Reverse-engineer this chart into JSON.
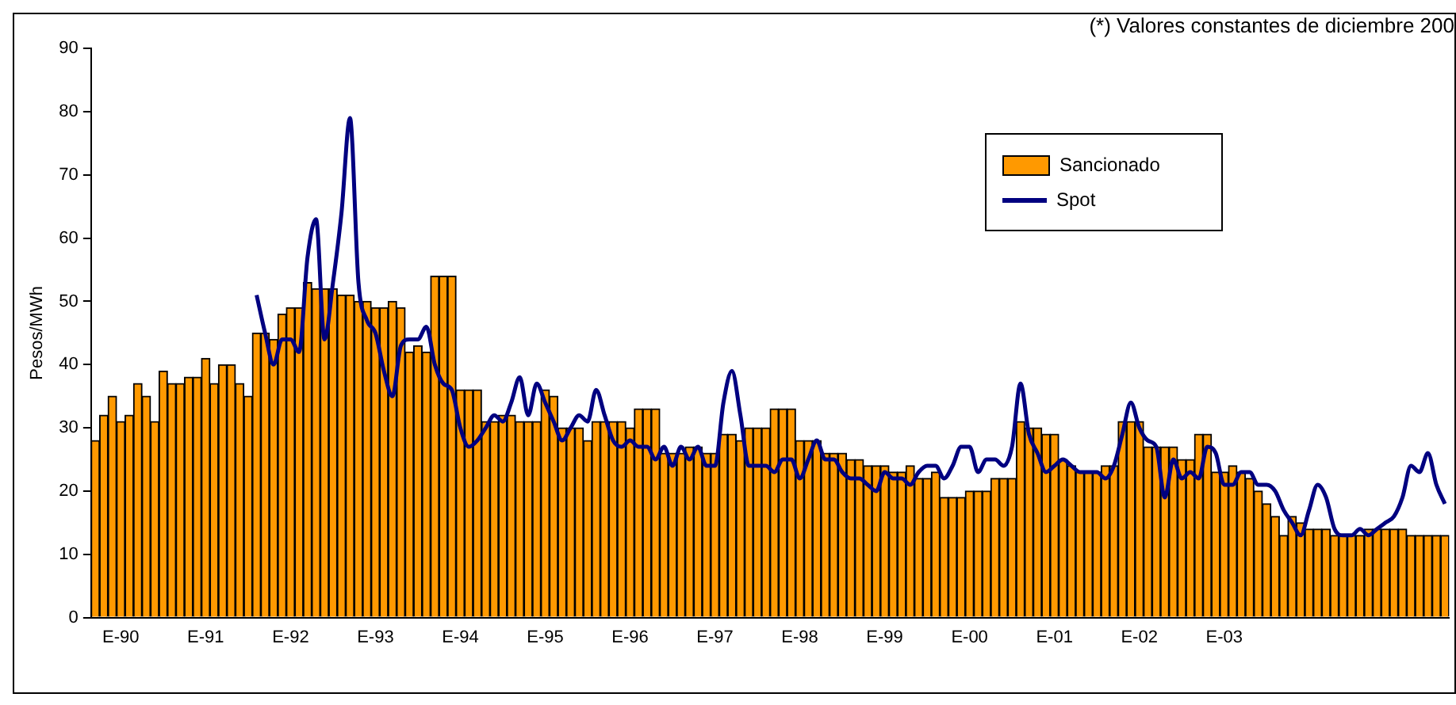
{
  "chart_data": {
    "type": "bar",
    "title": "(*) Valores constantes de diciembre 200",
    "ylabel": "Pesos/MWh",
    "categories": [
      null,
      null,
      null,
      "E-90",
      null,
      null,
      null,
      null,
      null,
      null,
      null,
      null,
      null,
      "E-91",
      null,
      null,
      null,
      null,
      null,
      null,
      null,
      null,
      null,
      "E-92",
      null,
      null,
      null,
      null,
      null,
      null,
      null,
      null,
      null,
      "E-93",
      null,
      null,
      null,
      null,
      null,
      null,
      null,
      null,
      null,
      "E-94",
      null,
      null,
      null,
      null,
      null,
      null,
      null,
      null,
      null,
      "E-95",
      null,
      null,
      null,
      null,
      null,
      null,
      null,
      null,
      null,
      "E-96",
      null,
      null,
      null,
      null,
      null,
      null,
      null,
      null,
      null,
      "E-97",
      null,
      null,
      null,
      null,
      null,
      null,
      null,
      null,
      null,
      "E-98",
      null,
      null,
      null,
      null,
      null,
      null,
      null,
      null,
      null,
      "E-99",
      null,
      null,
      null,
      null,
      null,
      null,
      null,
      null,
      null,
      "E-00",
      null,
      null,
      null,
      null,
      null,
      null,
      null,
      null,
      null,
      "E-01",
      null,
      null,
      null,
      null,
      null,
      null,
      null,
      null,
      null,
      "E-02",
      null,
      null,
      null,
      null,
      null,
      null,
      null,
      null,
      null,
      "E-03",
      null,
      null,
      null,
      null,
      null,
      null,
      null,
      null,
      null,
      null,
      null,
      null,
      null,
      null,
      null,
      null,
      null,
      null,
      null,
      null,
      null,
      null,
      null,
      null,
      null,
      null
    ],
    "series": [
      {
        "name": "Sancionado",
        "color": "#ff9900",
        "values": [
          28,
          32,
          35,
          31,
          32,
          37,
          35,
          31,
          39,
          37,
          37,
          38,
          38,
          41,
          37,
          40,
          40,
          37,
          35,
          45,
          45,
          44,
          48,
          49,
          49,
          53,
          52,
          52,
          52,
          51,
          51,
          50,
          50,
          49,
          49,
          50,
          49,
          42,
          43,
          42,
          54,
          54,
          54,
          36,
          36,
          36,
          31,
          31,
          32,
          32,
          31,
          31,
          31,
          36,
          35,
          30,
          30,
          30,
          28,
          31,
          31,
          31,
          31,
          30,
          33,
          33,
          33,
          26,
          26,
          26,
          27,
          27,
          26,
          26,
          29,
          29,
          28,
          30,
          30,
          30,
          33,
          33,
          33,
          28,
          28,
          28,
          26,
          26,
          26,
          25,
          25,
          24,
          24,
          24,
          23,
          23,
          24,
          22,
          22,
          23,
          19,
          19,
          19,
          20,
          20,
          20,
          22,
          22,
          22,
          31,
          30,
          30,
          29,
          29,
          25,
          24,
          23,
          23,
          23,
          24,
          24,
          31,
          31,
          31,
          27,
          27,
          27,
          27,
          25,
          25,
          29,
          29,
          23,
          23,
          24,
          23,
          22,
          20,
          18,
          16,
          13,
          16,
          15,
          14,
          14,
          14,
          13,
          13,
          13,
          13,
          14,
          14,
          14,
          14,
          14,
          13,
          13,
          13,
          13,
          13
        ]
      },
      {
        "name": "Spot",
        "type": "line",
        "color": "#000080",
        "values": [
          null,
          null,
          null,
          null,
          null,
          null,
          null,
          null,
          null,
          null,
          null,
          null,
          null,
          null,
          null,
          null,
          null,
          null,
          null,
          51,
          45,
          40,
          44,
          44,
          42,
          57,
          63,
          44,
          53,
          64,
          79,
          53,
          47,
          45,
          39,
          35,
          43,
          44,
          44,
          46,
          40,
          37,
          36,
          30,
          27,
          28,
          30,
          32,
          31,
          34,
          38,
          32,
          37,
          34,
          31,
          28,
          30,
          32,
          31,
          36,
          32,
          28,
          27,
          28,
          27,
          27,
          25,
          27,
          24,
          27,
          25,
          27,
          24,
          24,
          34,
          39,
          32,
          24,
          24,
          24,
          23,
          25,
          25,
          22,
          25,
          28,
          25,
          25,
          23,
          22,
          22,
          21,
          20,
          23,
          22,
          22,
          21,
          23,
          24,
          24,
          22,
          24,
          27,
          27,
          23,
          25,
          25,
          24,
          27,
          37,
          29,
          26,
          23,
          24,
          25,
          24,
          23,
          23,
          23,
          22,
          24,
          29,
          34,
          30,
          28,
          27,
          19,
          25,
          22,
          23,
          22,
          27,
          26,
          21,
          21,
          23,
          23,
          21,
          21,
          20,
          17,
          15,
          13,
          17,
          21,
          19,
          14,
          13,
          13,
          14,
          13,
          14,
          15,
          16,
          19,
          24,
          23,
          26,
          21,
          18
        ]
      }
    ],
    "ylim": [
      0,
      90
    ],
    "yticks": [
      0,
      10,
      20,
      30,
      40,
      50,
      60,
      70,
      80,
      90
    ],
    "grid": false,
    "legend": "top right",
    "marker": "none"
  }
}
